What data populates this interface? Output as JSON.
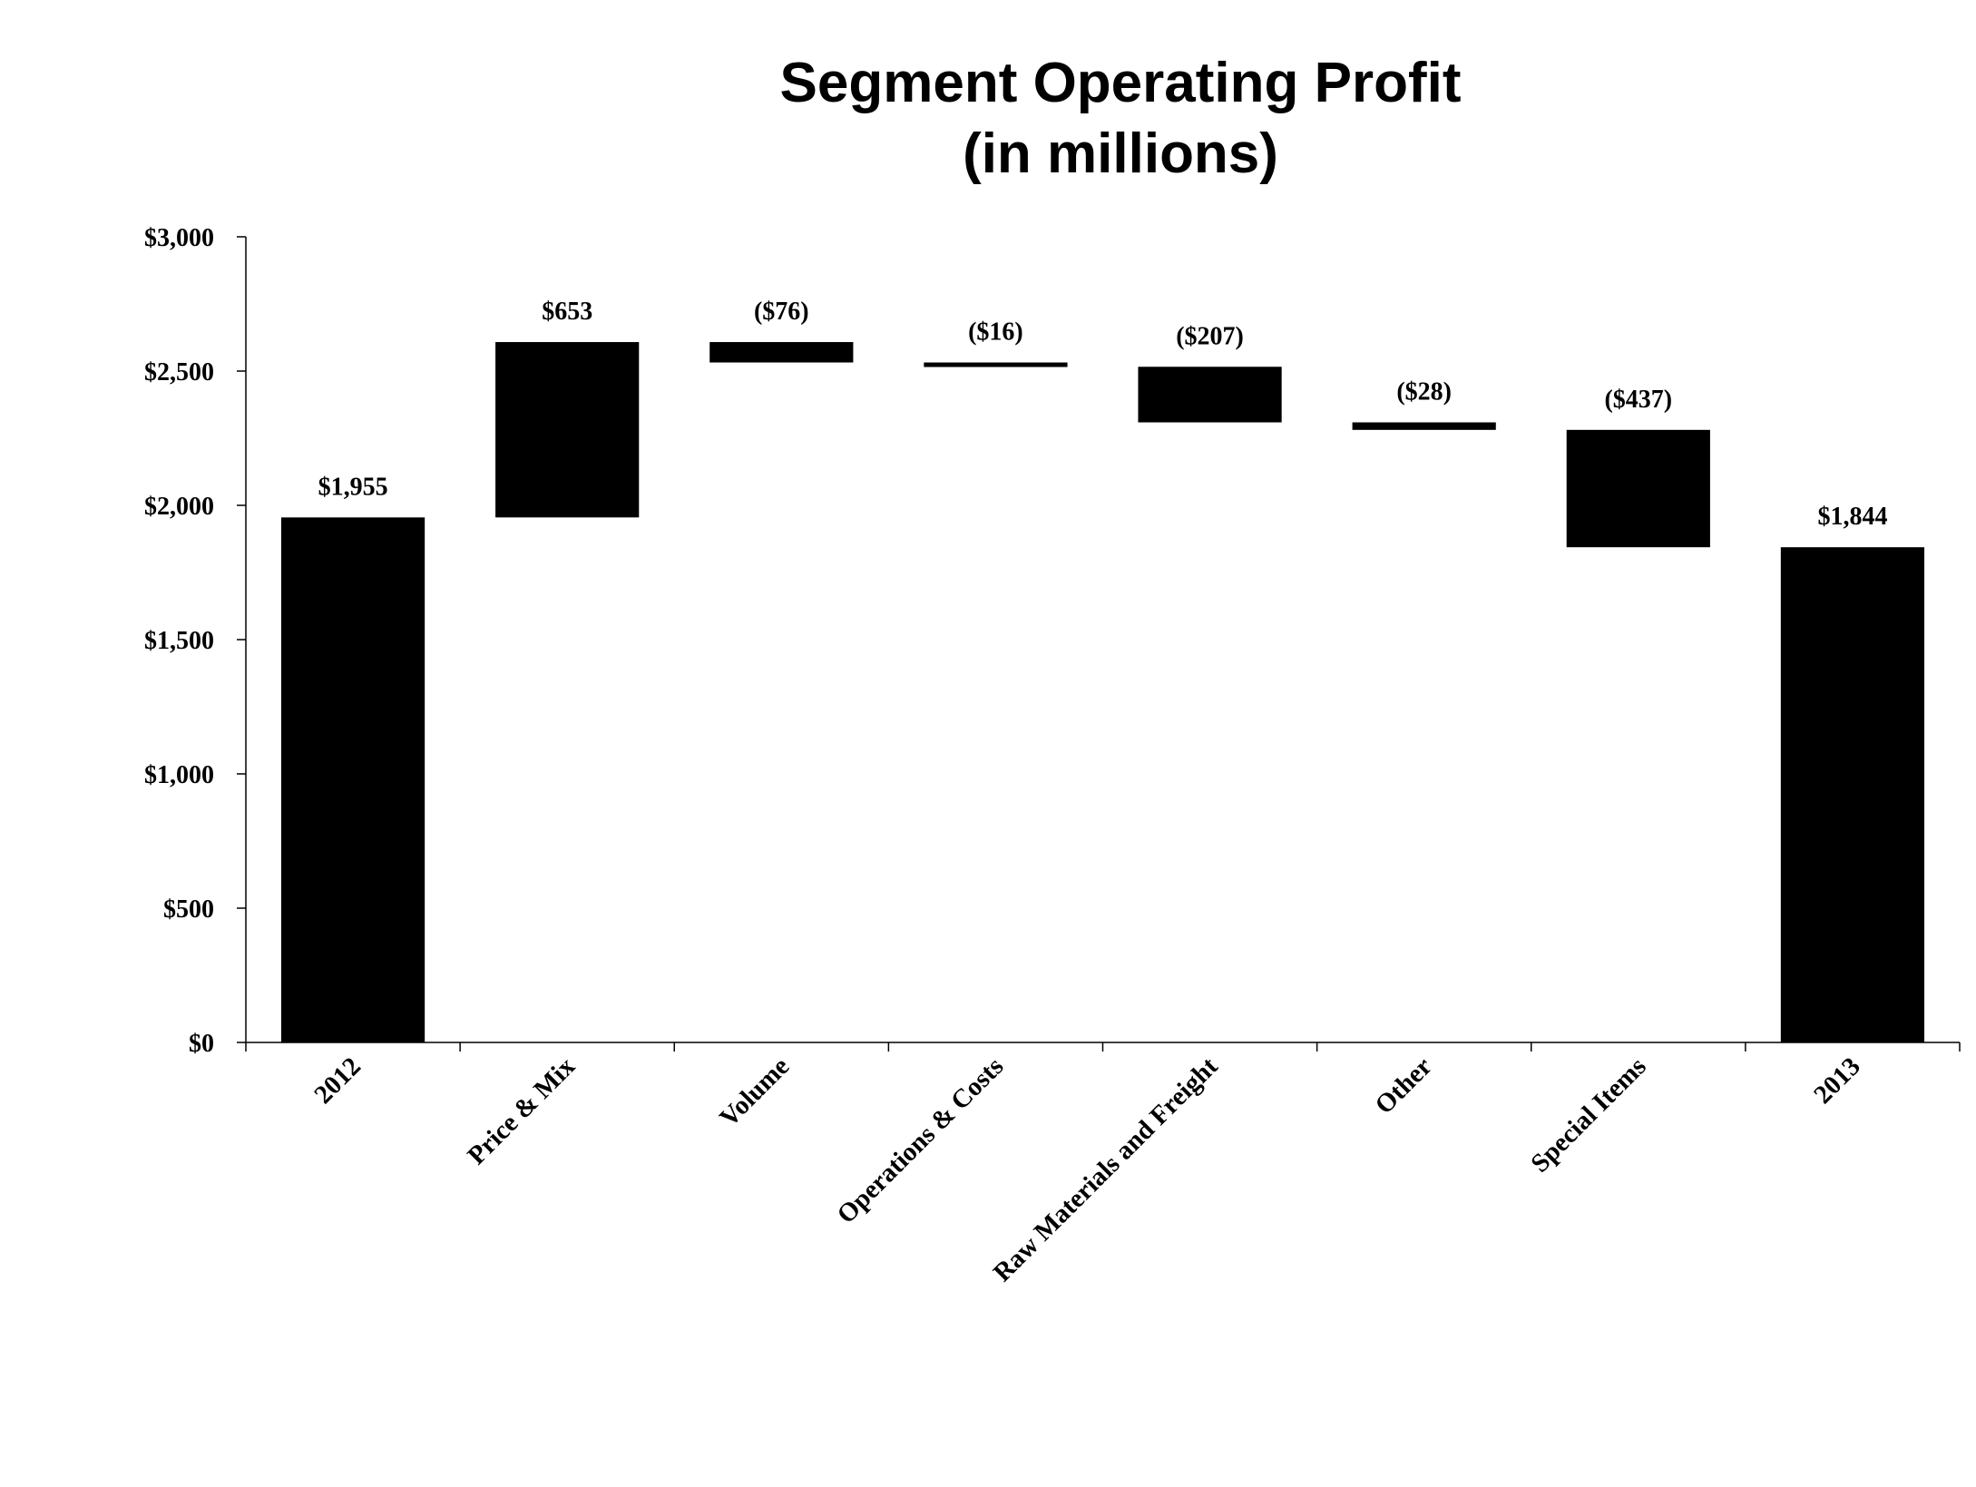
{
  "chart_data": {
    "type": "bar",
    "subtype": "waterfall",
    "title": [
      "Segment Operating Profit",
      "(in millions)"
    ],
    "xlabel": "",
    "ylabel": "",
    "ylim": [
      0,
      3000
    ],
    "yticks": [
      0,
      500,
      1000,
      1500,
      2000,
      2500,
      3000
    ],
    "ytick_labels": [
      "$0",
      "$500",
      "$1,000",
      "$1,500",
      "$2,000",
      "$2,500",
      "$3,000"
    ],
    "grid": false,
    "categories": [
      "2012",
      "Price & Mix",
      "Volume",
      "Operations & Costs",
      "Raw Materials and Freight",
      "Other",
      "Special Items",
      "2013"
    ],
    "values": [
      1955,
      653,
      -76,
      -16,
      -207,
      -28,
      -437,
      1844
    ],
    "kinds": [
      "total",
      "delta",
      "delta",
      "delta",
      "delta",
      "delta",
      "delta",
      "total"
    ],
    "data_labels": [
      "$1,955",
      "$653",
      "($76)",
      "($16)",
      "($207)",
      "($28)",
      "($437)",
      "$1,844"
    ],
    "bar_color": "#000000"
  }
}
